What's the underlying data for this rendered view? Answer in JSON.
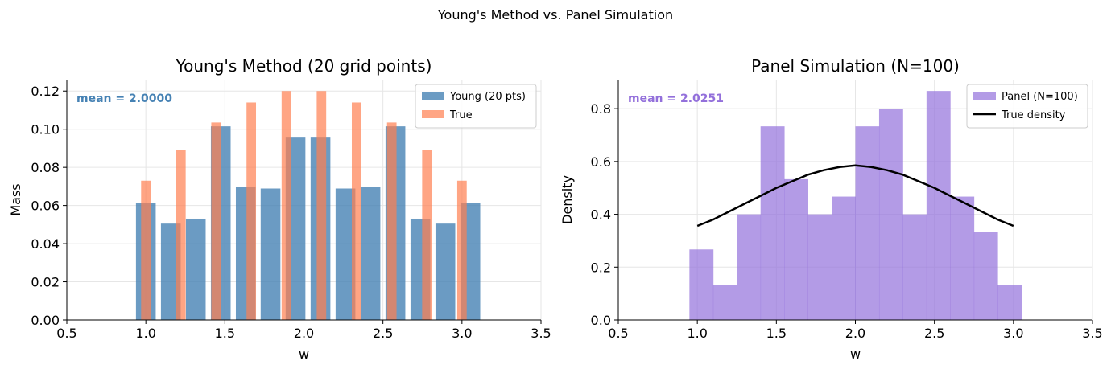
{
  "suptitle": "Young's Method vs. Panel Simulation",
  "chart_data": [
    {
      "type": "bar",
      "title": "Young's Method (20 grid points)",
      "xlabel": "w",
      "ylabel": "Mass",
      "xlim": [
        0.5,
        3.5
      ],
      "ylim": [
        0,
        0.126
      ],
      "xticks": [
        "0.5",
        "1.0",
        "1.5",
        "2.0",
        "2.5",
        "3.0",
        "3.5"
      ],
      "xtick_values": [
        0.5,
        1.0,
        1.5,
        2.0,
        2.5,
        3.0,
        3.5
      ],
      "yticks": [
        "0.00",
        "0.02",
        "0.04",
        "0.06",
        "0.08",
        "0.10",
        "0.12"
      ],
      "ytick_values": [
        0,
        0.02,
        0.04,
        0.06,
        0.08,
        0.1,
        0.12
      ],
      "grid": true,
      "legend_position": "top-right",
      "annotation": "mean = 2.0000",
      "annotation_color": "#4682b4",
      "series": [
        {
          "name": "Young (20 pts)",
          "color": "#4682b4",
          "x": [
            1.0,
            1.158,
            1.316,
            1.474,
            1.632,
            1.789,
            1.947,
            2.105,
            2.263,
            2.421,
            2.579,
            2.737,
            2.895,
            3.053
          ],
          "values": [
            0.0612,
            0.0505,
            0.0531,
            0.1015,
            0.0697,
            0.0689,
            0.0956,
            0.0956,
            0.0689,
            0.0697,
            0.1015,
            0.0531,
            0.0505,
            0.0612
          ]
        },
        {
          "name": "True",
          "color": "#ff7f50",
          "x": [
            1.0,
            1.222,
            1.444,
            1.667,
            1.889,
            2.111,
            2.333,
            2.556,
            2.778,
            3.0
          ],
          "values": [
            0.073,
            0.089,
            0.1035,
            0.114,
            0.12,
            0.12,
            0.114,
            0.1035,
            0.089,
            0.073
          ]
        }
      ]
    },
    {
      "type": "bar",
      "title": "Panel Simulation (N=100)",
      "xlabel": "w",
      "ylabel": "Density",
      "xlim": [
        0.5,
        3.5
      ],
      "ylim": [
        0,
        0.91
      ],
      "xticks": [
        "0.5",
        "1.0",
        "1.5",
        "2.0",
        "2.5",
        "3.0",
        "3.5"
      ],
      "xtick_values": [
        0.5,
        1.0,
        1.5,
        2.0,
        2.5,
        3.0,
        3.5
      ],
      "yticks": [
        "0.0",
        "0.2",
        "0.4",
        "0.6",
        "0.8"
      ],
      "ytick_values": [
        0,
        0.2,
        0.4,
        0.6,
        0.8
      ],
      "grid": true,
      "legend_position": "top-right",
      "annotation": "mean = 2.0251",
      "annotation_color": "#9370db",
      "histogram": {
        "name": "Panel (N=100)",
        "color": "#9370db",
        "bin_edges": [
          0.95,
          1.1,
          1.25,
          1.4,
          1.55,
          1.7,
          1.85,
          2.0,
          2.15,
          2.3,
          2.45,
          2.6,
          2.75,
          2.9,
          3.05
        ],
        "values": [
          0.267,
          0.133,
          0.4,
          0.733,
          0.533,
          0.4,
          0.467,
          0.733,
          0.8,
          0.4,
          0.867,
          0.467,
          0.333,
          0.133
        ]
      },
      "line": {
        "name": "True density",
        "color": "#000000",
        "x": [
          1.0,
          1.1,
          1.2,
          1.3,
          1.4,
          1.5,
          1.6,
          1.7,
          1.8,
          1.9,
          2.0,
          2.1,
          2.2,
          2.3,
          2.4,
          2.5,
          2.6,
          2.7,
          2.8,
          2.9,
          3.0
        ],
        "y": [
          0.356,
          0.38,
          0.41,
          0.44,
          0.47,
          0.5,
          0.525,
          0.55,
          0.567,
          0.579,
          0.585,
          0.579,
          0.567,
          0.55,
          0.525,
          0.5,
          0.47,
          0.44,
          0.41,
          0.38,
          0.356
        ]
      }
    }
  ]
}
